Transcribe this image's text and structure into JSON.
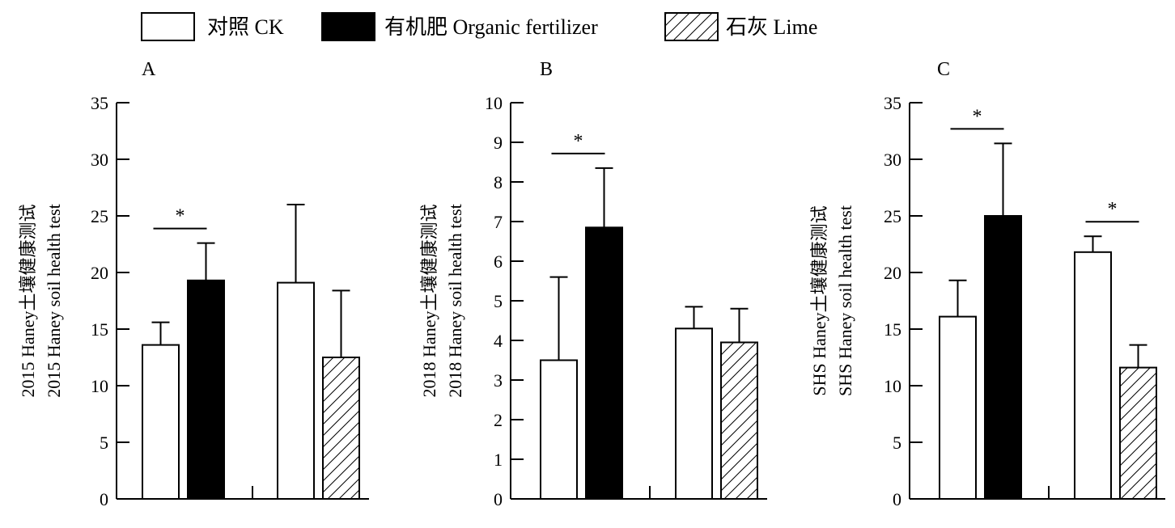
{
  "legend": [
    {
      "label": "对照 CK",
      "fill": "white"
    },
    {
      "label": "有机肥 Organic fertilizer",
      "fill": "black"
    },
    {
      "label": "石灰 Lime",
      "fill": "hatch"
    }
  ],
  "colors": {
    "black": "#000000",
    "white": "#ffffff"
  },
  "chart_data": [
    {
      "type": "bar",
      "panel": "A",
      "ylabel": [
        "2015 Haney土壤健康测试",
        "2015 Haney soil health test"
      ],
      "ylim": [
        0,
        35
      ],
      "yticks": [
        0,
        5,
        10,
        15,
        20,
        25,
        30,
        35
      ],
      "groups": [
        {
          "bars": [
            {
              "series": "对照 CK",
              "value": 13.6,
              "error": 2.0
            },
            {
              "series": "有机肥 Organic fertilizer",
              "value": 19.3,
              "error": 3.3
            }
          ],
          "significance": "*"
        },
        {
          "bars": [
            {
              "series": "对照 CK",
              "value": 19.1,
              "error": 6.9
            },
            {
              "series": "石灰 Lime",
              "value": 12.5,
              "error": 5.9
            }
          ],
          "significance": ""
        }
      ]
    },
    {
      "type": "bar",
      "panel": "B",
      "ylabel": [
        "2018 Haney土壤健康测试",
        "2018 Haney soil health test"
      ],
      "ylim": [
        0,
        10
      ],
      "yticks": [
        0,
        1,
        2,
        3,
        4,
        5,
        6,
        7,
        8,
        9,
        10
      ],
      "groups": [
        {
          "bars": [
            {
              "series": "对照 CK",
              "value": 3.5,
              "error": 2.1
            },
            {
              "series": "有机肥 Organic fertilizer",
              "value": 6.85,
              "error": 1.5
            }
          ],
          "significance": "*"
        },
        {
          "bars": [
            {
              "series": "对照 CK",
              "value": 4.3,
              "error": 0.55
            },
            {
              "series": "石灰 Lime",
              "value": 3.95,
              "error": 0.85
            }
          ],
          "significance": ""
        }
      ]
    },
    {
      "type": "bar",
      "panel": "C",
      "ylabel": [
        "SHS Haney土壤健康测试",
        "SHS Haney soil health test"
      ],
      "ylim": [
        0,
        35
      ],
      "yticks": [
        0,
        5,
        10,
        15,
        20,
        25,
        30,
        35
      ],
      "groups": [
        {
          "bars": [
            {
              "series": "对照 CK",
              "value": 16.1,
              "error": 3.2
            },
            {
              "series": "有机肥 Organic fertilizer",
              "value": 25.0,
              "error": 6.4
            }
          ],
          "significance": "*"
        },
        {
          "bars": [
            {
              "series": "对照 CK",
              "value": 21.8,
              "error": 1.4
            },
            {
              "series": "石灰 Lime",
              "value": 11.6,
              "error": 2.0
            }
          ],
          "significance": "*"
        }
      ]
    }
  ]
}
